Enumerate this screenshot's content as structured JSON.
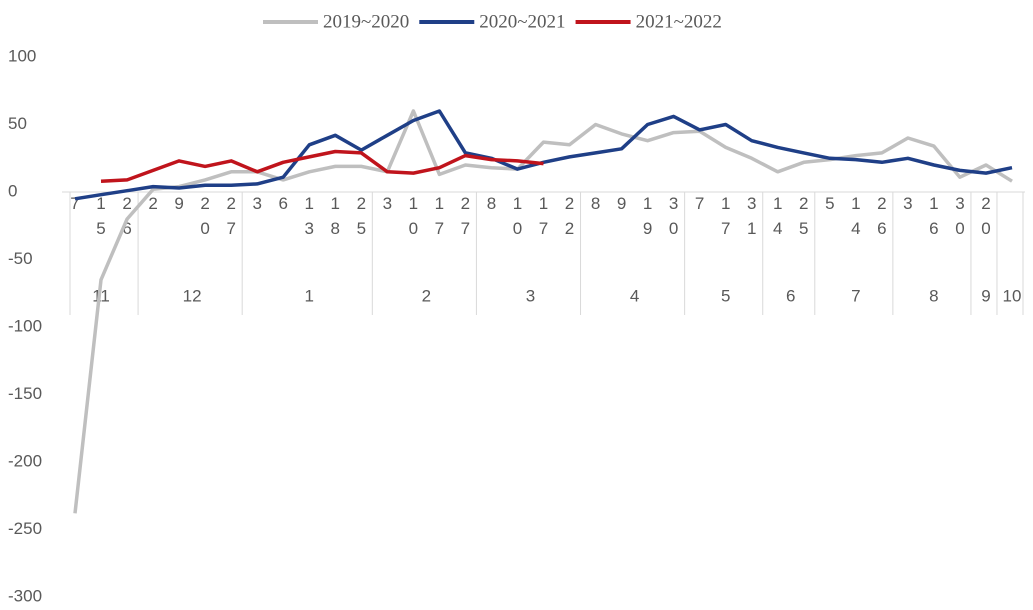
{
  "chart_data": {
    "type": "line",
    "groups": [
      {
        "label": "11",
        "categories": [
          "7",
          "15",
          "26"
        ]
      },
      {
        "label": "12",
        "categories": [
          "2",
          "9",
          "20",
          "27"
        ]
      },
      {
        "label": "1",
        "categories": [
          "3",
          "6",
          "13",
          "18",
          "25"
        ]
      },
      {
        "label": "2",
        "categories": [
          "3",
          "10",
          "17",
          "27"
        ]
      },
      {
        "label": "3",
        "categories": [
          "8",
          "10",
          "17",
          "22"
        ]
      },
      {
        "label": "4",
        "categories": [
          "8",
          "9",
          "19",
          "30"
        ]
      },
      {
        "label": "5",
        "categories": [
          "7",
          "17",
          "31"
        ]
      },
      {
        "label": "6",
        "categories": [
          "14",
          "25"
        ]
      },
      {
        "label": "7",
        "categories": [
          "5",
          "14",
          "26"
        ]
      },
      {
        "label": "8",
        "categories": [
          "3",
          "16",
          "30"
        ]
      },
      {
        "label": "9",
        "categories": [
          "20"
        ]
      },
      {
        "label": "10",
        "categories": [
          null
        ]
      }
    ],
    "series": [
      {
        "name": "2019~2020",
        "color": "#bfbfbf",
        "values": [
          -238,
          -65,
          -20,
          2,
          4,
          9,
          15,
          15,
          9,
          15,
          19,
          19,
          15,
          60,
          13,
          20,
          18,
          17,
          37,
          35,
          50,
          43,
          38,
          44,
          45,
          33,
          25,
          15,
          22,
          24,
          27,
          29,
          40,
          34,
          11,
          20,
          8
        ]
      },
      {
        "name": "2020~2021",
        "color": "#1f3f87",
        "values": [
          -5,
          -2,
          1,
          4,
          3,
          5,
          5,
          6,
          11,
          35,
          42,
          31,
          42,
          53,
          60,
          29,
          25,
          17,
          22,
          26,
          29,
          32,
          50,
          56,
          46,
          50,
          38,
          33,
          29,
          25,
          24,
          22,
          25,
          20,
          16,
          14,
          18
        ]
      },
      {
        "name": "2021~2022",
        "color": "#c0141c",
        "values": [
          null,
          8,
          9,
          16,
          23,
          19,
          23,
          15,
          22,
          26,
          30,
          29,
          15,
          14,
          18,
          27,
          24,
          23,
          21,
          null,
          null,
          null,
          null,
          null,
          null,
          null,
          null,
          null,
          null,
          null,
          null,
          null,
          null,
          null,
          null,
          null,
          null
        ]
      }
    ],
    "ylim": [
      -300,
      100
    ],
    "yticks": [
      -300,
      -250,
      -200,
      -150,
      -100,
      -50,
      0,
      50,
      100
    ],
    "legend": "top"
  }
}
